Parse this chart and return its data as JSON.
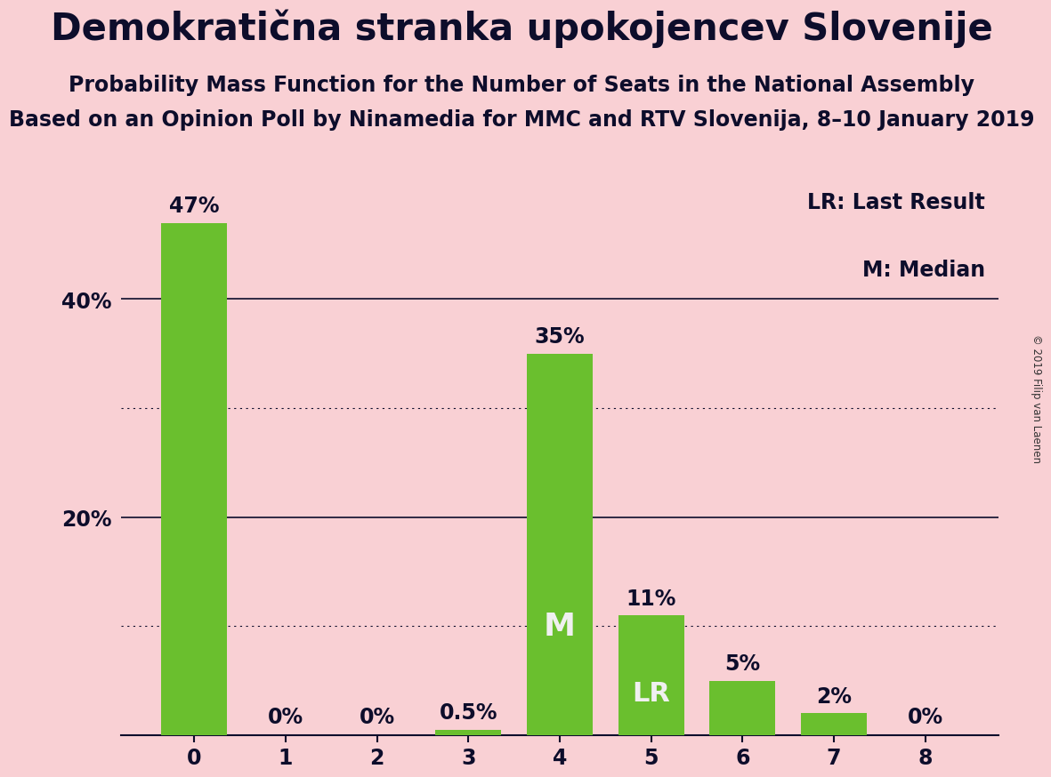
{
  "title": "Demokratična stranka upokojencev Slovenije",
  "subtitle1": "Probability Mass Function for the Number of Seats in the National Assembly",
  "subtitle2": "Based on an Opinion Poll by Ninamedia for MMC and RTV Slovenija, 8–10 January 2019",
  "copyright": "© 2019 Filip van Laenen",
  "categories": [
    0,
    1,
    2,
    3,
    4,
    5,
    6,
    7,
    8
  ],
  "values": [
    47,
    0,
    0,
    0.5,
    35,
    11,
    5,
    2,
    0
  ],
  "bar_color": "#6abf2e",
  "background_color": "#f9d0d4",
  "label_color_dark": "#0d0d2b",
  "label_color_white": "#f0f0f0",
  "median_bar": 4,
  "last_result_bar": 5,
  "ytick_positions": [
    20,
    40
  ],
  "ytick_labels": [
    "20%",
    "40%"
  ],
  "solid_gridlines": [
    20,
    40
  ],
  "dotted_gridlines": [
    10,
    30
  ],
  "ylim": [
    0,
    52
  ],
  "legend_lr": "LR: Last Result",
  "legend_m": "M: Median",
  "bar_labels": [
    "47%",
    "0%",
    "0%",
    "0.5%",
    "35%",
    "11%",
    "5%",
    "2%",
    "0%"
  ],
  "bar_label_above": [
    true,
    true,
    true,
    true,
    true,
    true,
    true,
    true,
    true
  ],
  "median_label": "M",
  "lr_label": "LR",
  "title_fontsize": 30,
  "subtitle1_fontsize": 17,
  "subtitle2_fontsize": 17,
  "bar_label_fontsize": 17,
  "inside_label_fontsize": 22,
  "axis_tick_fontsize": 17,
  "legend_fontsize": 17
}
